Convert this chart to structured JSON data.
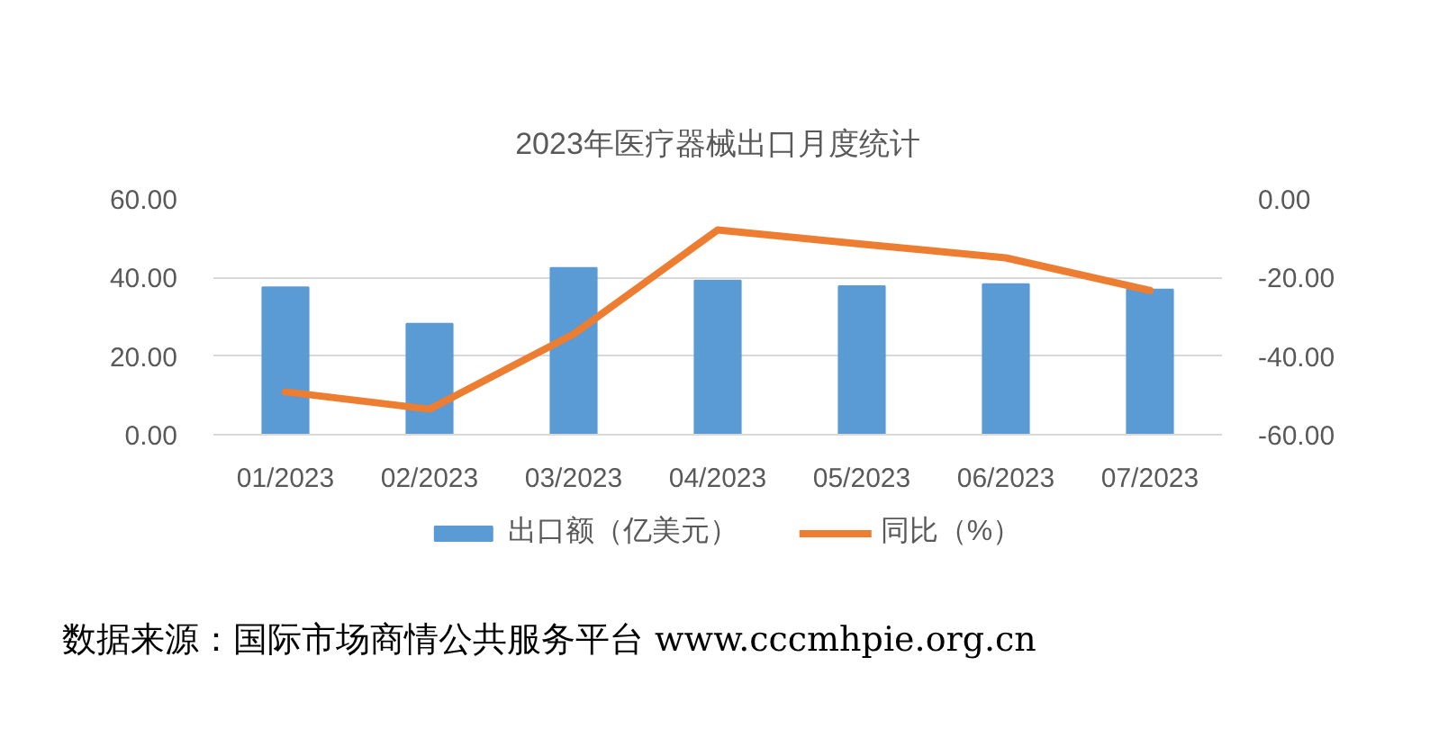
{
  "chart_data": {
    "type": "bar",
    "title": "2023年医疗器械出口月度统计",
    "categories": [
      "01/2023",
      "02/2023",
      "03/2023",
      "04/2023",
      "05/2023",
      "06/2023",
      "07/2023"
    ],
    "series": [
      {
        "name": "出口额（亿美元）",
        "color": "#5b9bd5",
        "values": [
          37.5,
          28.2,
          42.4,
          39.2,
          37.8,
          38.3,
          36.9
        ]
      },
      {
        "name": "同比（%）",
        "type": "line",
        "axis": "y2",
        "color": "#ed7d31",
        "values": [
          -49.1,
          -53.5,
          -34.4,
          -7.9,
          -11.5,
          -15.0,
          -23.3
        ]
      }
    ],
    "ylim": [
      0,
      60
    ],
    "yticks": [
      {
        "value": 0,
        "label": "0.00"
      },
      {
        "value": 20,
        "label": "20.00"
      },
      {
        "value": 40,
        "label": "40.00"
      },
      {
        "value": 60,
        "label": "60.00"
      }
    ],
    "y2lim": [
      -60,
      0
    ],
    "y2ticks": [
      {
        "value": -60,
        "label": "-60.00"
      },
      {
        "value": -40,
        "label": "-40.00"
      },
      {
        "value": -20,
        "label": "-20.00"
      },
      {
        "value": 0,
        "label": "0.00"
      }
    ],
    "grid": "y",
    "legend": "bottom",
    "annotations": [
      "数据来源：国际市场商情公共服务平台 www.cccmhpie.org.cn"
    ]
  }
}
